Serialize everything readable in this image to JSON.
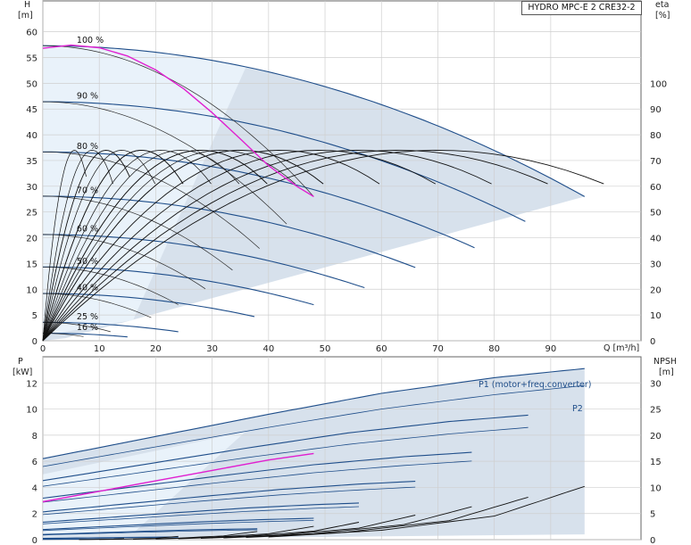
{
  "chart_title": "HYDRO MPC-E 2 CRE32-2",
  "chart_data": [
    {
      "type": "line",
      "name": "head",
      "y_label_top": "H",
      "y_unit": "[m]",
      "y_right_label": "eta",
      "y_right_unit": "[%]",
      "xlabel": "Q [m³/h]",
      "xlim": [
        0,
        106
      ],
      "ylim": [
        0,
        66
      ],
      "y_right_lim": [
        0,
        132
      ],
      "x_ticks": [
        0,
        10,
        20,
        30,
        40,
        50,
        60,
        70,
        80,
        90
      ],
      "y_ticks": [
        0,
        5,
        10,
        15,
        20,
        25,
        30,
        35,
        40,
        45,
        50,
        55,
        60
      ],
      "y_right_ticks": [
        0,
        10,
        20,
        30,
        40,
        50,
        60,
        70,
        80,
        90,
        100
      ],
      "grid": true,
      "speed_labels": [
        "100 %",
        "90 %",
        "80 %",
        "70 %",
        "60 %",
        "50 %",
        "40 %",
        "25 %",
        "16 %"
      ],
      "speed_fractions": [
        1.0,
        0.9,
        0.8,
        0.7,
        0.6,
        0.5,
        0.4,
        0.25,
        0.16
      ],
      "label_q": 6,
      "qh_curve_100": {
        "h0": 57.3,
        "qend_double": 96,
        "hend_double": 28,
        "qend_single": 48,
        "hend_single": 28
      },
      "operating_curve": {
        "q": [
          0,
          5,
          10,
          15,
          20,
          25,
          30,
          35,
          40,
          45,
          48
        ],
        "h": [
          56.8,
          57.4,
          56.9,
          55.3,
          52.6,
          48.9,
          44.3,
          39.2,
          34.0,
          30.0,
          28.0
        ]
      },
      "eta_peak": 74,
      "eta_q_best_double": 70
    },
    {
      "type": "line",
      "name": "power",
      "y_label_top": "P",
      "y_unit": "[kW]",
      "y_right_label": "NPSH",
      "y_right_unit": "[m]",
      "xlim": [
        0,
        106
      ],
      "ylim": [
        0,
        14
      ],
      "y_right_lim": [
        0,
        35
      ],
      "y_ticks": [
        0,
        2,
        4,
        6,
        8,
        10,
        12
      ],
      "y_right_ticks": [
        0,
        5,
        10,
        15,
        20,
        25,
        30
      ],
      "series_labels": [
        "P1 (motor+freq.converter)",
        "P2"
      ],
      "p1_100": {
        "q": [
          0,
          20,
          40,
          60,
          80,
          96
        ],
        "p": [
          6.2,
          7.9,
          9.6,
          11.2,
          12.4,
          13.1
        ]
      },
      "p2_100": {
        "q": [
          0,
          20,
          40,
          60,
          80,
          96
        ],
        "p": [
          5.6,
          7.1,
          8.6,
          10.0,
          11.1,
          11.8
        ]
      },
      "p_selected": {
        "q": [
          0,
          10,
          20,
          30,
          40,
          48
        ],
        "p": [
          2.9,
          3.7,
          4.5,
          5.3,
          6.1,
          6.6
        ]
      },
      "npsh_100": {
        "q": [
          40,
          60,
          80,
          96
        ],
        "n": [
          0.5,
          1.8,
          4.5,
          10.2
        ]
      }
    }
  ]
}
